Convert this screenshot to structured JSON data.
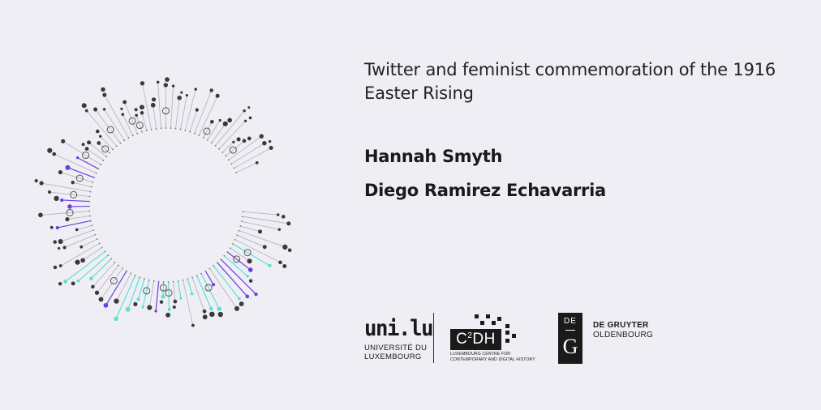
{
  "title": "Twitter and feminist commemoration of the 1916 Easter Rising",
  "authors": [
    "Hannah Smyth",
    "Diego Ramirez Echavarria"
  ],
  "logos": {
    "unilu": {
      "wordmark": "uni.lu",
      "line1": "UNIVERSITÉ DU",
      "line2": "LUXEMBOURG"
    },
    "c2dh": {
      "mark_main": "C",
      "mark_sup": "2",
      "mark_tail": "DH",
      "caption_line1": "LUXEMBOURG CENTRE FOR",
      "caption_line2": "CONTEMPORARY AND DIGITAL HISTORY"
    },
    "degruyter": {
      "mark_top": "DE",
      "mark_bottom": "G",
      "line1": "DE GRUYTER",
      "line2": "OLDENBOURG"
    }
  },
  "colors": {
    "background": "#f0eef5",
    "stem_gray": "#b8b6bd",
    "node_dark": "#3a3a3a",
    "accent_purple": "#6a3fe0",
    "accent_cyan": "#5fe0d4"
  }
}
